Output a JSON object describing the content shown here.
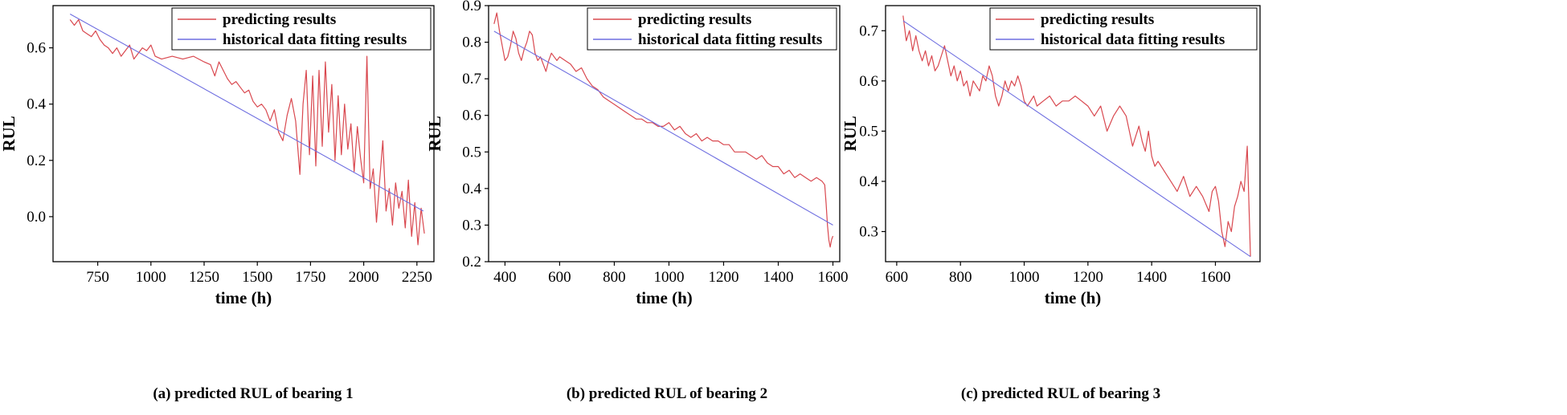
{
  "colors": {
    "predicted": "#d9484f",
    "fitting": "#6e6ee0",
    "axis": "#000000",
    "background": "#ffffff"
  },
  "chart_data": [
    {
      "type": "line",
      "panel": "a",
      "caption": "(a) predicted RUL of bearing 1",
      "xlabel": "time (h)",
      "ylabel": "RUL",
      "xlim": [
        540,
        2330
      ],
      "ylim": [
        -0.16,
        0.75
      ],
      "xticks": [
        750,
        1000,
        1250,
        1500,
        1750,
        2000,
        2250
      ],
      "yticks": [
        0.0,
        0.2,
        0.4,
        0.6
      ],
      "legend_position": "top-right",
      "series": [
        {
          "name": "predicting results",
          "key": "predicted",
          "x": [
            620,
            640,
            660,
            680,
            700,
            720,
            740,
            760,
            780,
            800,
            820,
            840,
            860,
            880,
            900,
            920,
            940,
            960,
            980,
            1000,
            1020,
            1050,
            1100,
            1150,
            1200,
            1250,
            1280,
            1300,
            1320,
            1340,
            1360,
            1380,
            1400,
            1420,
            1440,
            1460,
            1480,
            1500,
            1520,
            1540,
            1560,
            1580,
            1600,
            1620,
            1640,
            1660,
            1680,
            1700,
            1715,
            1730,
            1745,
            1760,
            1775,
            1790,
            1805,
            1820,
            1835,
            1850,
            1865,
            1880,
            1895,
            1910,
            1925,
            1940,
            1955,
            1970,
            1985,
            2000,
            2015,
            2030,
            2045,
            2060,
            2075,
            2090,
            2105,
            2120,
            2135,
            2150,
            2165,
            2180,
            2195,
            2210,
            2225,
            2240,
            2255,
            2270,
            2285
          ],
          "y": [
            0.7,
            0.68,
            0.7,
            0.66,
            0.65,
            0.64,
            0.66,
            0.63,
            0.61,
            0.6,
            0.58,
            0.6,
            0.57,
            0.59,
            0.61,
            0.56,
            0.58,
            0.6,
            0.59,
            0.61,
            0.57,
            0.56,
            0.57,
            0.56,
            0.57,
            0.55,
            0.54,
            0.5,
            0.55,
            0.52,
            0.49,
            0.47,
            0.48,
            0.46,
            0.44,
            0.45,
            0.41,
            0.39,
            0.4,
            0.38,
            0.34,
            0.38,
            0.3,
            0.27,
            0.36,
            0.42,
            0.34,
            0.15,
            0.4,
            0.52,
            0.22,
            0.5,
            0.18,
            0.52,
            0.25,
            0.55,
            0.3,
            0.47,
            0.2,
            0.43,
            0.22,
            0.4,
            0.24,
            0.33,
            0.16,
            0.32,
            0.21,
            0.12,
            0.57,
            0.1,
            0.17,
            -0.02,
            0.13,
            0.27,
            0.02,
            0.1,
            -0.03,
            0.12,
            0.03,
            0.09,
            -0.04,
            0.13,
            -0.07,
            0.05,
            -0.1,
            0.03,
            -0.06
          ]
        },
        {
          "name": "historical data fitting results",
          "key": "fitting",
          "x": [
            620,
            2280
          ],
          "y": [
            0.72,
            0.02
          ]
        }
      ]
    },
    {
      "type": "line",
      "panel": "b",
      "caption": "(b) predicted RUL of bearing 2",
      "xlabel": "time (h)",
      "ylabel": "RUL",
      "xlim": [
        340,
        1625
      ],
      "ylim": [
        0.2,
        0.9
      ],
      "xticks": [
        400,
        600,
        800,
        1000,
        1200,
        1400,
        1600
      ],
      "yticks": [
        0.2,
        0.3,
        0.4,
        0.5,
        0.6,
        0.7,
        0.8,
        0.9
      ],
      "legend_position": "top-right",
      "series": [
        {
          "name": "predicting results",
          "key": "predicted",
          "x": [
            360,
            370,
            380,
            390,
            400,
            410,
            420,
            430,
            440,
            450,
            460,
            470,
            480,
            490,
            500,
            510,
            520,
            530,
            540,
            550,
            560,
            570,
            580,
            590,
            600,
            620,
            640,
            660,
            680,
            700,
            720,
            740,
            760,
            780,
            800,
            820,
            840,
            860,
            880,
            900,
            920,
            940,
            960,
            980,
            1000,
            1020,
            1040,
            1060,
            1080,
            1100,
            1120,
            1140,
            1160,
            1180,
            1200,
            1220,
            1240,
            1260,
            1280,
            1300,
            1320,
            1340,
            1360,
            1380,
            1400,
            1420,
            1440,
            1460,
            1480,
            1500,
            1520,
            1540,
            1560,
            1570,
            1575,
            1580,
            1585,
            1590,
            1595,
            1600
          ],
          "y": [
            0.85,
            0.88,
            0.83,
            0.79,
            0.75,
            0.76,
            0.79,
            0.83,
            0.81,
            0.77,
            0.75,
            0.78,
            0.8,
            0.83,
            0.82,
            0.77,
            0.75,
            0.76,
            0.74,
            0.72,
            0.75,
            0.77,
            0.76,
            0.75,
            0.76,
            0.75,
            0.74,
            0.72,
            0.73,
            0.7,
            0.68,
            0.67,
            0.65,
            0.64,
            0.63,
            0.62,
            0.61,
            0.6,
            0.59,
            0.59,
            0.58,
            0.58,
            0.57,
            0.57,
            0.58,
            0.56,
            0.57,
            0.55,
            0.54,
            0.55,
            0.53,
            0.54,
            0.53,
            0.53,
            0.52,
            0.52,
            0.5,
            0.5,
            0.5,
            0.49,
            0.48,
            0.49,
            0.47,
            0.46,
            0.46,
            0.44,
            0.45,
            0.43,
            0.44,
            0.43,
            0.42,
            0.43,
            0.42,
            0.41,
            0.36,
            0.3,
            0.26,
            0.24,
            0.26,
            0.27
          ]
        },
        {
          "name": "historical data fitting results",
          "key": "fitting",
          "x": [
            360,
            1600
          ],
          "y": [
            0.83,
            0.3
          ]
        }
      ]
    },
    {
      "type": "line",
      "panel": "c",
      "caption": "(c) predicted RUL of bearing 3",
      "xlabel": "time (h)",
      "ylabel": "RUL",
      "xlim": [
        565,
        1740
      ],
      "ylim": [
        0.24,
        0.75
      ],
      "xticks": [
        600,
        800,
        1000,
        1200,
        1400,
        1600
      ],
      "yticks": [
        0.3,
        0.4,
        0.5,
        0.6,
        0.7
      ],
      "legend_position": "top-right",
      "series": [
        {
          "name": "predicting results",
          "key": "predicted",
          "x": [
            620,
            630,
            640,
            650,
            660,
            670,
            680,
            690,
            700,
            710,
            720,
            730,
            740,
            750,
            760,
            770,
            780,
            790,
            800,
            810,
            820,
            830,
            840,
            850,
            860,
            870,
            880,
            890,
            900,
            910,
            920,
            930,
            940,
            950,
            960,
            970,
            980,
            990,
            1000,
            1010,
            1020,
            1030,
            1040,
            1060,
            1080,
            1100,
            1120,
            1140,
            1160,
            1180,
            1200,
            1220,
            1240,
            1260,
            1280,
            1300,
            1320,
            1340,
            1360,
            1370,
            1380,
            1390,
            1400,
            1410,
            1420,
            1440,
            1460,
            1480,
            1500,
            1520,
            1540,
            1560,
            1580,
            1590,
            1600,
            1610,
            1620,
            1630,
            1640,
            1650,
            1660,
            1670,
            1680,
            1690,
            1700,
            1710
          ],
          "y": [
            0.73,
            0.68,
            0.7,
            0.66,
            0.69,
            0.66,
            0.64,
            0.66,
            0.63,
            0.65,
            0.62,
            0.63,
            0.65,
            0.67,
            0.64,
            0.61,
            0.63,
            0.6,
            0.62,
            0.59,
            0.6,
            0.57,
            0.6,
            0.59,
            0.58,
            0.61,
            0.6,
            0.63,
            0.61,
            0.57,
            0.55,
            0.57,
            0.6,
            0.58,
            0.6,
            0.59,
            0.61,
            0.59,
            0.56,
            0.55,
            0.56,
            0.57,
            0.55,
            0.56,
            0.57,
            0.55,
            0.56,
            0.56,
            0.57,
            0.56,
            0.55,
            0.53,
            0.55,
            0.5,
            0.53,
            0.55,
            0.53,
            0.47,
            0.51,
            0.48,
            0.46,
            0.5,
            0.45,
            0.43,
            0.44,
            0.42,
            0.4,
            0.38,
            0.41,
            0.37,
            0.39,
            0.37,
            0.34,
            0.38,
            0.39,
            0.36,
            0.3,
            0.27,
            0.32,
            0.3,
            0.35,
            0.37,
            0.4,
            0.38,
            0.47,
            0.25
          ]
        },
        {
          "name": "historical data fitting results",
          "key": "fitting",
          "x": [
            620,
            1710
          ],
          "y": [
            0.72,
            0.25
          ]
        }
      ]
    }
  ]
}
